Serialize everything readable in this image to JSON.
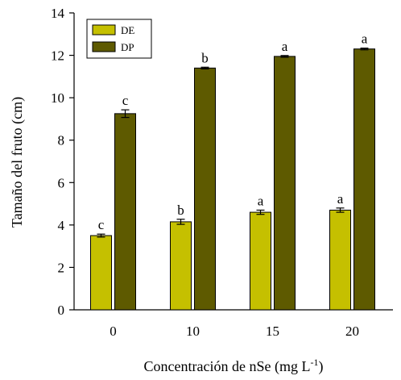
{
  "chart_data": {
    "type": "bar",
    "categories": [
      "0",
      "10",
      "15",
      "20"
    ],
    "series": [
      {
        "name": "DE",
        "color": "#c5c000",
        "values": [
          3.5,
          4.15,
          4.6,
          4.7
        ],
        "errors": [
          0.07,
          0.12,
          0.1,
          0.1
        ],
        "labels": [
          "c",
          "b",
          "a",
          "a"
        ]
      },
      {
        "name": "DP",
        "color": "#5e5a00",
        "values": [
          9.25,
          11.4,
          11.95,
          12.3
        ],
        "errors": [
          0.18,
          0.04,
          0.04,
          0.04
        ],
        "labels": [
          "c",
          "b",
          "a",
          "a"
        ]
      }
    ],
    "xlabel": "Concentración de nSe (mg L",
    "xlabel_superscript": "-1",
    "xlabel_suffix": ")",
    "ylabel": "Tamaño del fruto (cm)",
    "ylim": [
      0,
      14
    ],
    "yticks": [
      0,
      2,
      4,
      6,
      8,
      10,
      12,
      14
    ],
    "grid": false,
    "legend_position": "top-left"
  }
}
